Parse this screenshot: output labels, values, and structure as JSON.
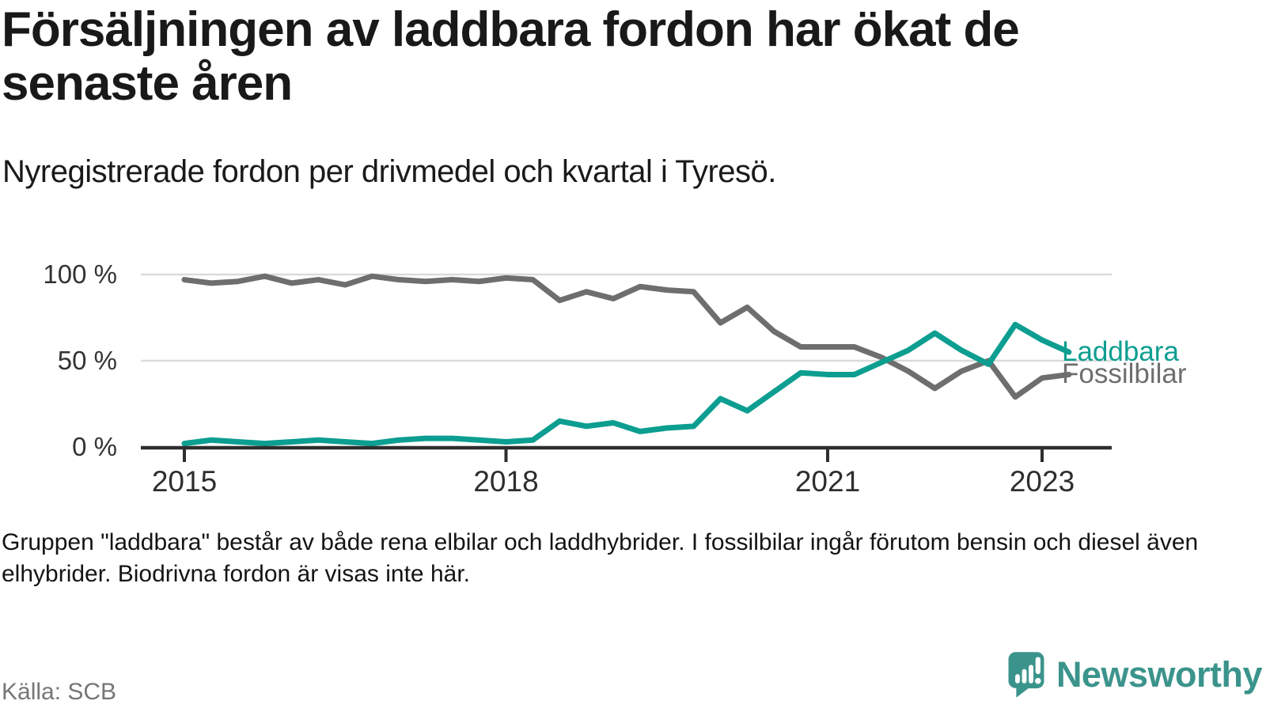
{
  "header": {
    "title": "Försäljningen av laddbara fordon har ökat de senaste åren",
    "subtitle": "Nyregistrerade fordon per drivmedel och kvartal i Tyresö."
  },
  "chart_data": {
    "type": "line",
    "title": "Försäljningen av laddbara fordon har ökat de senaste åren",
    "subtitle": "Nyregistrerade fordon per drivmedel och kvartal i Tyresö.",
    "unit": "%",
    "ylim": [
      0,
      100
    ],
    "grid": "horizontal",
    "legend_position": "right-of-line-ends",
    "x_quarters": [
      "2015-Q1",
      "2015-Q2",
      "2015-Q3",
      "2015-Q4",
      "2016-Q1",
      "2016-Q2",
      "2016-Q3",
      "2016-Q4",
      "2017-Q1",
      "2017-Q2",
      "2017-Q3",
      "2017-Q4",
      "2018-Q1",
      "2018-Q2",
      "2018-Q3",
      "2018-Q4",
      "2019-Q1",
      "2019-Q2",
      "2019-Q3",
      "2019-Q4",
      "2020-Q1",
      "2020-Q2",
      "2020-Q3",
      "2020-Q4",
      "2021-Q1",
      "2021-Q2",
      "2021-Q3",
      "2021-Q4",
      "2022-Q1",
      "2022-Q2",
      "2022-Q3",
      "2022-Q4",
      "2023-Q1",
      "2023-Q2"
    ],
    "series": [
      {
        "name": "Laddbara",
        "color": "#0c9e90",
        "values": [
          2,
          4,
          3,
          2,
          3,
          4,
          3,
          2,
          4,
          5,
          5,
          4,
          3,
          4,
          15,
          12,
          14,
          9,
          11,
          12,
          28,
          21,
          32,
          43,
          42,
          42,
          49,
          56,
          66,
          56,
          48,
          71,
          62,
          55
        ]
      },
      {
        "name": "Fossilbilar",
        "color": "#6e6e6e",
        "values": [
          97,
          95,
          96,
          99,
          95,
          97,
          94,
          99,
          97,
          96,
          97,
          96,
          98,
          97,
          85,
          90,
          86,
          93,
          91,
          90,
          72,
          81,
          67,
          58,
          58,
          58,
          52,
          44,
          34,
          44,
          50,
          29,
          40,
          42
        ]
      }
    ],
    "y_ticks": [
      {
        "value": 0,
        "label": "0 %"
      },
      {
        "value": 50,
        "label": "50 %"
      },
      {
        "value": 100,
        "label": "100 %"
      }
    ],
    "x_ticks": [
      {
        "label": "2015",
        "quarter_index": 0
      },
      {
        "label": "2018",
        "quarter_index": 12
      },
      {
        "label": "2021",
        "quarter_index": 24
      },
      {
        "label": "2023",
        "quarter_index": 32
      }
    ]
  },
  "footnote": "Gruppen \"laddbara\" består av både rena elbilar och laddhybrider. I fossilbilar ingår förutom bensin och diesel även elhybrider. Biodrivna fordon är visas inte här.",
  "source": "Källa: SCB",
  "brand": {
    "name": "Newsworthy",
    "color": "#3b948c"
  },
  "colors": {
    "accent_teal": "#0c9e90",
    "line_gray": "#6e6e6e",
    "axis": "#2e2e2e",
    "gridline": "#dbdbdb",
    "brand_teal": "#3b948c"
  }
}
